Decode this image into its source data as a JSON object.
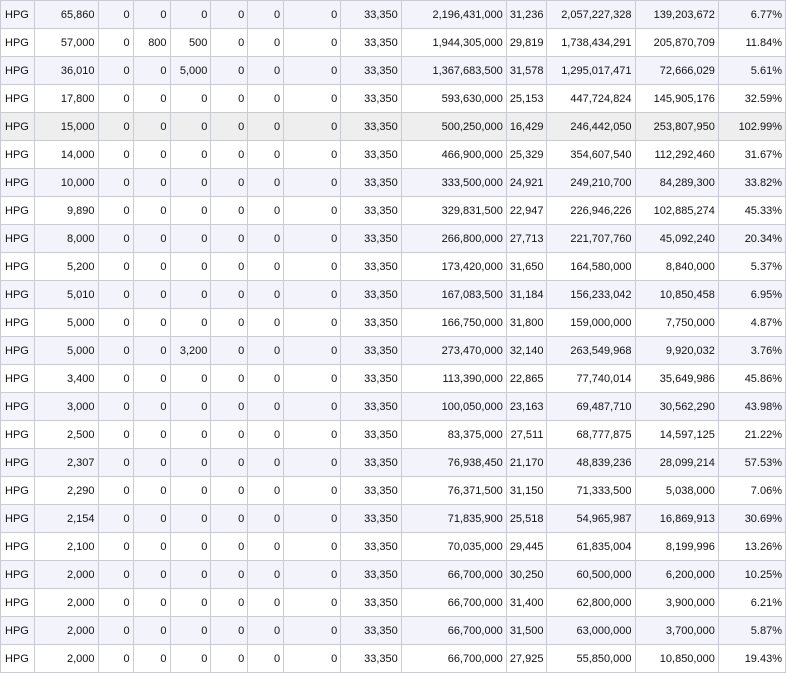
{
  "table": {
    "rows": [
      [
        "HPG",
        "65,860",
        "0",
        "0",
        "0",
        "0",
        "0",
        "0",
        "33,350",
        "2,196,431,000",
        "31,236",
        "2,057,227,328",
        "139,203,672",
        "6.77%"
      ],
      [
        "HPG",
        "57,000",
        "0",
        "800",
        "500",
        "0",
        "0",
        "0",
        "33,350",
        "1,944,305,000",
        "29,819",
        "1,738,434,291",
        "205,870,709",
        "11.84%"
      ],
      [
        "HPG",
        "36,010",
        "0",
        "0",
        "5,000",
        "0",
        "0",
        "0",
        "33,350",
        "1,367,683,500",
        "31,578",
        "1,295,017,471",
        "72,666,029",
        "5.61%"
      ],
      [
        "HPG",
        "17,800",
        "0",
        "0",
        "0",
        "0",
        "0",
        "0",
        "33,350",
        "593,630,000",
        "25,153",
        "447,724,824",
        "145,905,176",
        "32.59%"
      ],
      [
        "HPG",
        "15,000",
        "0",
        "0",
        "0",
        "0",
        "0",
        "0",
        "33,350",
        "500,250,000",
        "16,429",
        "246,442,050",
        "253,807,950",
        "102.99%"
      ],
      [
        "HPG",
        "14,000",
        "0",
        "0",
        "0",
        "0",
        "0",
        "0",
        "33,350",
        "466,900,000",
        "25,329",
        "354,607,540",
        "112,292,460",
        "31.67%"
      ],
      [
        "HPG",
        "10,000",
        "0",
        "0",
        "0",
        "0",
        "0",
        "0",
        "33,350",
        "333,500,000",
        "24,921",
        "249,210,700",
        "84,289,300",
        "33.82%"
      ],
      [
        "HPG",
        "9,890",
        "0",
        "0",
        "0",
        "0",
        "0",
        "0",
        "33,350",
        "329,831,500",
        "22,947",
        "226,946,226",
        "102,885,274",
        "45.33%"
      ],
      [
        "HPG",
        "8,000",
        "0",
        "0",
        "0",
        "0",
        "0",
        "0",
        "33,350",
        "266,800,000",
        "27,713",
        "221,707,760",
        "45,092,240",
        "20.34%"
      ],
      [
        "HPG",
        "5,200",
        "0",
        "0",
        "0",
        "0",
        "0",
        "0",
        "33,350",
        "173,420,000",
        "31,650",
        "164,580,000",
        "8,840,000",
        "5.37%"
      ],
      [
        "HPG",
        "5,010",
        "0",
        "0",
        "0",
        "0",
        "0",
        "0",
        "33,350",
        "167,083,500",
        "31,184",
        "156,233,042",
        "10,850,458",
        "6.95%"
      ],
      [
        "HPG",
        "5,000",
        "0",
        "0",
        "0",
        "0",
        "0",
        "0",
        "33,350",
        "166,750,000",
        "31,800",
        "159,000,000",
        "7,750,000",
        "4.87%"
      ],
      [
        "HPG",
        "5,000",
        "0",
        "0",
        "3,200",
        "0",
        "0",
        "0",
        "33,350",
        "273,470,000",
        "32,140",
        "263,549,968",
        "9,920,032",
        "3.76%"
      ],
      [
        "HPG",
        "3,400",
        "0",
        "0",
        "0",
        "0",
        "0",
        "0",
        "33,350",
        "113,390,000",
        "22,865",
        "77,740,014",
        "35,649,986",
        "45.86%"
      ],
      [
        "HPG",
        "3,000",
        "0",
        "0",
        "0",
        "0",
        "0",
        "0",
        "33,350",
        "100,050,000",
        "23,163",
        "69,487,710",
        "30,562,290",
        "43.98%"
      ],
      [
        "HPG",
        "2,500",
        "0",
        "0",
        "0",
        "0",
        "0",
        "0",
        "33,350",
        "83,375,000",
        "27,511",
        "68,777,875",
        "14,597,125",
        "21.22%"
      ],
      [
        "HPG",
        "2,307",
        "0",
        "0",
        "0",
        "0",
        "0",
        "0",
        "33,350",
        "76,938,450",
        "21,170",
        "48,839,236",
        "28,099,214",
        "57.53%"
      ],
      [
        "HPG",
        "2,290",
        "0",
        "0",
        "0",
        "0",
        "0",
        "0",
        "33,350",
        "76,371,500",
        "31,150",
        "71,333,500",
        "5,038,000",
        "7.06%"
      ],
      [
        "HPG",
        "2,154",
        "0",
        "0",
        "0",
        "0",
        "0",
        "0",
        "33,350",
        "71,835,900",
        "25,518",
        "54,965,987",
        "16,869,913",
        "30.69%"
      ],
      [
        "HPG",
        "2,100",
        "0",
        "0",
        "0",
        "0",
        "0",
        "0",
        "33,350",
        "70,035,000",
        "29,445",
        "61,835,004",
        "8,199,996",
        "13.26%"
      ],
      [
        "HPG",
        "2,000",
        "0",
        "0",
        "0",
        "0",
        "0",
        "0",
        "33,350",
        "66,700,000",
        "30,250",
        "60,500,000",
        "6,200,000",
        "10.25%"
      ],
      [
        "HPG",
        "2,000",
        "0",
        "0",
        "0",
        "0",
        "0",
        "0",
        "33,350",
        "66,700,000",
        "31,400",
        "62,800,000",
        "3,900,000",
        "6.21%"
      ],
      [
        "HPG",
        "2,000",
        "0",
        "0",
        "0",
        "0",
        "0",
        "0",
        "33,350",
        "66,700,000",
        "31,500",
        "63,000,000",
        "3,700,000",
        "5.87%"
      ],
      [
        "HPG",
        "2,000",
        "0",
        "0",
        "0",
        "0",
        "0",
        "0",
        "33,350",
        "66,700,000",
        "27,925",
        "55,850,000",
        "10,850,000",
        "19.43%"
      ]
    ],
    "highlighted_row": 4
  },
  "colors": {
    "grid_line": "#c9ccd6",
    "row_stripe": "#f3f4fb",
    "row_plain": "#ffffff",
    "row_highlight": "#eeeeee"
  }
}
